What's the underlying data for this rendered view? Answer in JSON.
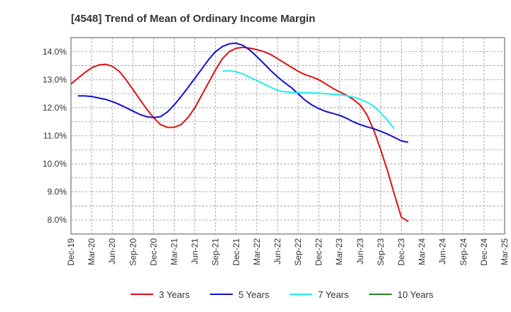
{
  "chart_data": {
    "type": "line",
    "title": "[4548]  Trend of Mean of Ordinary Income Margin",
    "xlabel": "",
    "ylabel": "",
    "ylim": [
      7.5,
      14.5
    ],
    "y_ticks": [
      "8.0%",
      "9.0%",
      "10.0%",
      "11.0%",
      "12.0%",
      "13.0%",
      "14.0%"
    ],
    "y_tick_values": [
      8,
      9,
      10,
      11,
      12,
      13,
      14
    ],
    "x_tick_labels": [
      "Dec-19",
      "Mar-20",
      "Jun-20",
      "Sep-20",
      "Dec-20",
      "Mar-21",
      "Jun-21",
      "Sep-21",
      "Dec-21",
      "Mar-22",
      "Jun-22",
      "Sep-22",
      "Dec-22",
      "Mar-23",
      "Jun-23",
      "Sep-23",
      "Dec-23",
      "Mar-24",
      "Jun-24",
      "Sep-24",
      "Dec-24",
      "Mar-25"
    ],
    "grid": true,
    "legend_position": "bottom",
    "series": [
      {
        "name": "3 Years",
        "color": "#dd1111",
        "points": [
          [
            0,
            12.85
          ],
          [
            1,
            13.05
          ],
          [
            2,
            13.25
          ],
          [
            3,
            13.42
          ],
          [
            4,
            13.52
          ],
          [
            5,
            13.55
          ],
          [
            6,
            13.48
          ],
          [
            7,
            13.3
          ],
          [
            8,
            13.0
          ],
          [
            9,
            12.65
          ],
          [
            10,
            12.3
          ],
          [
            11,
            11.95
          ],
          [
            12,
            11.65
          ],
          [
            13,
            11.4
          ],
          [
            14,
            11.3
          ],
          [
            15,
            11.3
          ],
          [
            16,
            11.4
          ],
          [
            17,
            11.65
          ],
          [
            18,
            12.0
          ],
          [
            19,
            12.45
          ],
          [
            20,
            12.9
          ],
          [
            21,
            13.35
          ],
          [
            22,
            13.75
          ],
          [
            23,
            14.0
          ],
          [
            24,
            14.12
          ],
          [
            25,
            14.15
          ],
          [
            26,
            14.12
          ],
          [
            27,
            14.07
          ],
          [
            28,
            14.0
          ],
          [
            29,
            13.9
          ],
          [
            30,
            13.75
          ],
          [
            31,
            13.6
          ],
          [
            32,
            13.45
          ],
          [
            33,
            13.3
          ],
          [
            34,
            13.18
          ],
          [
            35,
            13.1
          ],
          [
            36,
            13.0
          ],
          [
            37,
            12.85
          ],
          [
            38,
            12.7
          ],
          [
            39,
            12.57
          ],
          [
            40,
            12.45
          ],
          [
            41,
            12.3
          ],
          [
            42,
            12.1
          ],
          [
            43,
            11.75
          ],
          [
            44,
            11.2
          ],
          [
            45,
            10.5
          ],
          [
            46,
            9.75
          ],
          [
            47,
            8.9
          ],
          [
            48,
            8.1
          ],
          [
            49,
            7.95
          ]
        ]
      },
      {
        "name": "5 Years",
        "color": "#1111cc",
        "points": [
          [
            1,
            12.42
          ],
          [
            2,
            12.42
          ],
          [
            3,
            12.4
          ],
          [
            4,
            12.35
          ],
          [
            5,
            12.3
          ],
          [
            6,
            12.22
          ],
          [
            7,
            12.12
          ],
          [
            8,
            12.0
          ],
          [
            9,
            11.88
          ],
          [
            10,
            11.76
          ],
          [
            11,
            11.68
          ],
          [
            12,
            11.65
          ],
          [
            13,
            11.68
          ],
          [
            14,
            11.85
          ],
          [
            15,
            12.1
          ],
          [
            16,
            12.4
          ],
          [
            17,
            12.72
          ],
          [
            18,
            13.05
          ],
          [
            19,
            13.38
          ],
          [
            20,
            13.72
          ],
          [
            21,
            14.0
          ],
          [
            22,
            14.18
          ],
          [
            23,
            14.28
          ],
          [
            24,
            14.3
          ],
          [
            25,
            14.22
          ],
          [
            26,
            14.05
          ],
          [
            27,
            13.82
          ],
          [
            28,
            13.58
          ],
          [
            29,
            13.33
          ],
          [
            30,
            13.1
          ],
          [
            31,
            12.9
          ],
          [
            32,
            12.72
          ],
          [
            33,
            12.5
          ],
          [
            34,
            12.27
          ],
          [
            35,
            12.1
          ],
          [
            36,
            11.97
          ],
          [
            37,
            11.87
          ],
          [
            38,
            11.8
          ],
          [
            39,
            11.73
          ],
          [
            40,
            11.63
          ],
          [
            41,
            11.5
          ],
          [
            42,
            11.4
          ],
          [
            43,
            11.32
          ],
          [
            44,
            11.25
          ],
          [
            45,
            11.16
          ],
          [
            46,
            11.06
          ],
          [
            47,
            10.94
          ],
          [
            48,
            10.82
          ],
          [
            49,
            10.77
          ]
        ]
      },
      {
        "name": "7 Years",
        "color": "#22eeee",
        "points": [
          [
            22,
            13.3
          ],
          [
            23,
            13.32
          ],
          [
            24,
            13.28
          ],
          [
            25,
            13.2
          ],
          [
            26,
            13.08
          ],
          [
            27,
            12.97
          ],
          [
            28,
            12.85
          ],
          [
            29,
            12.73
          ],
          [
            30,
            12.62
          ],
          [
            31,
            12.57
          ],
          [
            32,
            12.55
          ],
          [
            33,
            12.54
          ],
          [
            34,
            12.54
          ],
          [
            35,
            12.53
          ],
          [
            36,
            12.52
          ],
          [
            37,
            12.5
          ],
          [
            38,
            12.48
          ],
          [
            39,
            12.47
          ],
          [
            40,
            12.43
          ],
          [
            41,
            12.38
          ],
          [
            42,
            12.3
          ],
          [
            43,
            12.2
          ],
          [
            44,
            12.05
          ],
          [
            45,
            11.82
          ],
          [
            46,
            11.55
          ],
          [
            47,
            11.25
          ]
        ]
      },
      {
        "name": "10 Years",
        "color": "#228822",
        "points": []
      }
    ]
  }
}
